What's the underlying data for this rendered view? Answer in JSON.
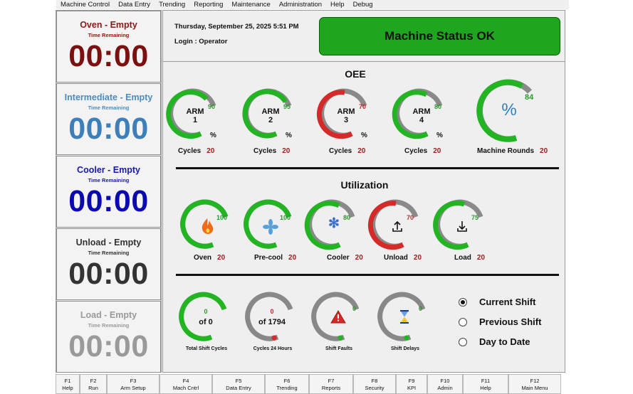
{
  "menu": [
    "Machine Control",
    "Data Entry",
    "Trending",
    "Reporting",
    "Maintenance",
    "Administration",
    "Help",
    "Debug"
  ],
  "timers": [
    {
      "name": "Oven - Empty",
      "caption": "Time Remaining",
      "value": "00:00",
      "name_color": "#8b1a1a",
      "value_color": "#7a1010"
    },
    {
      "name": "Intermediate - Empty",
      "caption": "Time Remaining",
      "value": "00:00",
      "name_color": "#4a8cc0",
      "value_color": "#3d7fb8"
    },
    {
      "name": "Cooler - Empty",
      "caption": "Time Remaining",
      "value": "00:00",
      "name_color": "#1a1aa8",
      "value_color": "#0a0ab0"
    },
    {
      "name": "Unload - Empty",
      "caption": "Time Remaining",
      "value": "00:00",
      "name_color": "#333333",
      "value_color": "#333333"
    },
    {
      "name": "Load - Empty",
      "caption": "Time Remaining",
      "value": "00:00",
      "name_color": "#9a9a9a",
      "value_color": "#9a9a9a"
    }
  ],
  "header": {
    "datetime": "Thursday, September 25, 2025 5:51 PM",
    "login": "Login  :  Operator",
    "status": "Machine Status OK",
    "status_color": "#1fa61f"
  },
  "oee": {
    "title": "OEE",
    "gauges": [
      {
        "line1": "ARM",
        "line2": "1",
        "value": "90",
        "pct": "%",
        "label": "Cycles",
        "count": "20",
        "color": "#22b422"
      },
      {
        "line1": "ARM",
        "line2": "2",
        "value": "95",
        "pct": "%",
        "label": "Cycles",
        "count": "20",
        "color": "#22b422"
      },
      {
        "line1": "ARM",
        "line2": "3",
        "value": "70",
        "pct": "%",
        "label": "Cycles",
        "count": "20",
        "color": "#d42a2a"
      },
      {
        "line1": "ARM",
        "line2": "4",
        "value": "80",
        "pct": "%",
        "label": "Cycles",
        "count": "20",
        "color": "#22b422"
      }
    ],
    "machine": {
      "symbol": "%",
      "value": "84",
      "label": "Machine Rounds",
      "count": "20",
      "color": "#22b422"
    }
  },
  "utilization": {
    "title": "Utilization",
    "gauges": [
      {
        "icon": "flame-icon",
        "value": "100",
        "label": "Oven",
        "count": "20",
        "color": "#22b422"
      },
      {
        "icon": "fan-icon",
        "value": "100",
        "label": "Pre-cool",
        "count": "20",
        "color": "#22b422"
      },
      {
        "icon": "snowflake-icon",
        "value": "80",
        "label": "Cooler",
        "count": "20",
        "color": "#22b422"
      },
      {
        "icon": "upload-icon",
        "value": "70",
        "label": "Unload",
        "count": "20",
        "color": "#d42a2a"
      },
      {
        "icon": "download-icon",
        "value": "75",
        "label": "Load",
        "count": "20",
        "color": "#22b422"
      }
    ]
  },
  "shift_stats": [
    {
      "top": "0",
      "bottom": "of 0",
      "label": "Total Shift Cycles",
      "color": "#22b422"
    },
    {
      "top": "0",
      "bottom": "of 1794",
      "label": "Cycles 24 Hours",
      "color": "#888888"
    },
    {
      "icon": "warning-icon",
      "value": "0",
      "label": "Shift Faults",
      "color": "#888888"
    },
    {
      "icon": "hourglass-icon",
      "value": "0",
      "label": "Shift Delays",
      "color": "#888888"
    }
  ],
  "period": {
    "options": [
      "Current Shift",
      "Previous Shift",
      "Day to Date"
    ],
    "selected": 0
  },
  "fkeys": [
    {
      "key": "F1",
      "label": "Help"
    },
    {
      "key": "F2",
      "label": "Run"
    },
    {
      "key": "F3",
      "label": "Arm Setup"
    },
    {
      "key": "F4",
      "label": "Mach Cntrl"
    },
    {
      "key": "F5",
      "label": "Data Entry"
    },
    {
      "key": "F6",
      "label": "Trending"
    },
    {
      "key": "F7",
      "label": "Reports"
    },
    {
      "key": "F8",
      "label": "Security"
    },
    {
      "key": "F9",
      "label": "KPI"
    },
    {
      "key": "F10",
      "label": "Admin"
    },
    {
      "key": "F11",
      "label": "Help"
    },
    {
      "key": "F12",
      "label": "Main Menu"
    }
  ]
}
